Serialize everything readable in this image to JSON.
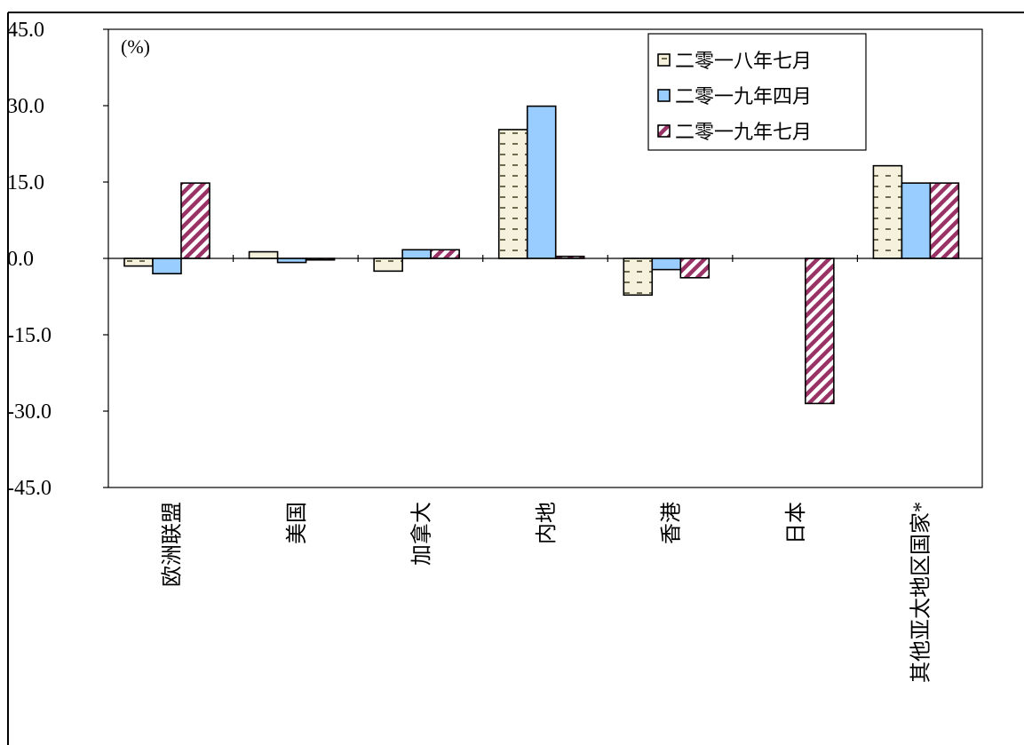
{
  "chart_data": {
    "type": "bar",
    "unit_label": "(%)",
    "categories": [
      "欧洲联盟",
      "美国",
      "加拿大",
      "内地",
      "香港",
      "日本",
      "其他亚太地区国家*"
    ],
    "series": [
      {
        "name": "二零一八年七月",
        "values": [
          -1.5,
          1.3,
          -2.5,
          25.3,
          -7.2,
          0.0,
          18.2
        ],
        "color": "#f5f1dc",
        "pattern": "dashes"
      },
      {
        "name": "二零一九年四月",
        "values": [
          -3.0,
          -0.8,
          1.7,
          29.9,
          -2.2,
          0.0,
          14.8
        ],
        "color": "#99ccff",
        "pattern": "solid"
      },
      {
        "name": "二零一九年七月",
        "values": [
          14.8,
          -0.3,
          1.7,
          0.4,
          -3.8,
          -28.5,
          14.8
        ],
        "color": "#993366",
        "pattern": "diagonal"
      }
    ],
    "ylim": [
      -45.0,
      45.0
    ],
    "yticks": [
      "45.0",
      "30.0",
      "15.0",
      "0.0",
      "-15.0",
      "-30.0",
      "-45.0"
    ],
    "grid": false,
    "legend_position": "top-right"
  }
}
